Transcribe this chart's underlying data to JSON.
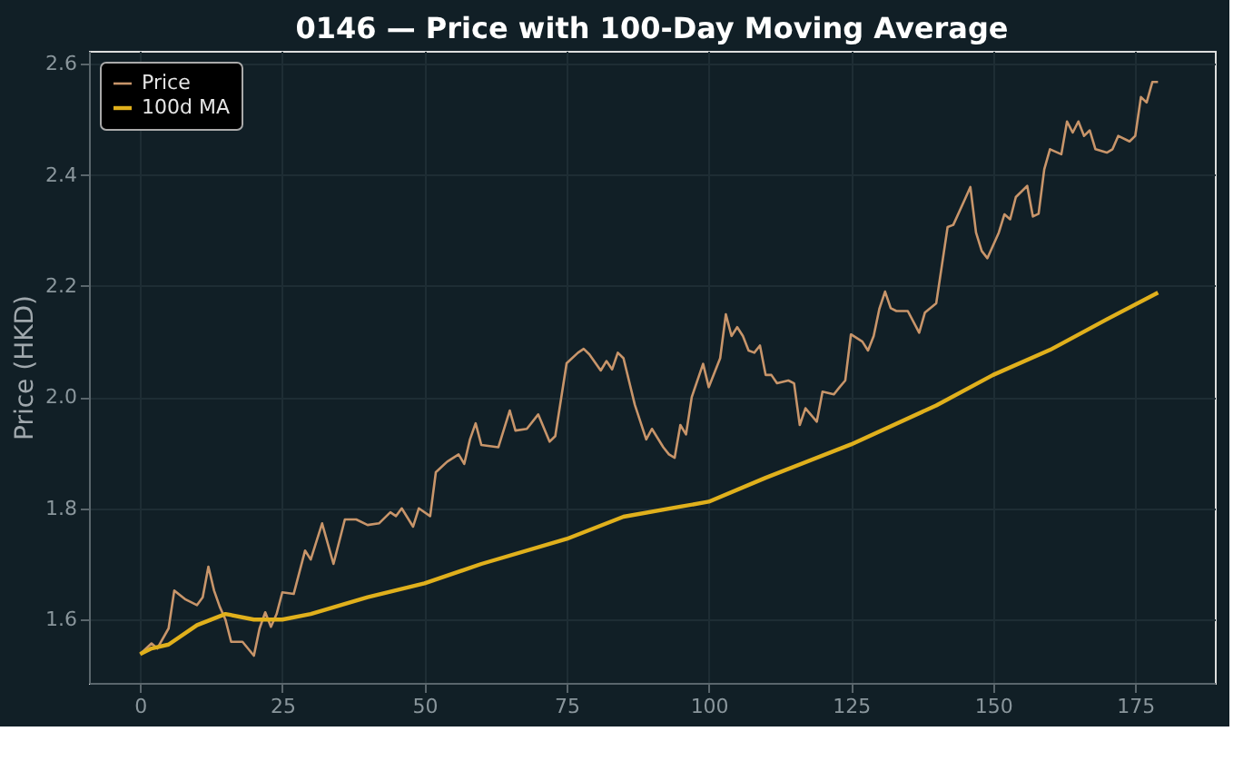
{
  "chart_data": {
    "type": "line",
    "title": "0146 — Price with 100-Day Moving Average",
    "ylabel": "Price (HKD)",
    "xlim": [
      -9,
      189
    ],
    "ylim": [
      1.486,
      2.623
    ],
    "xticks": [
      0,
      25,
      50,
      75,
      100,
      125,
      150,
      175
    ],
    "yticks": [
      1.6,
      1.8,
      {
        "value": 2,
        "label": "2.0"
      },
      2.2,
      2.4,
      2.6
    ],
    "grid": true,
    "legend": "top left",
    "line_style": "solid",
    "series": [
      {
        "name": "Price",
        "color": "#c8956a",
        "x": [
          0,
          2,
          3,
          5,
          6,
          8,
          10,
          11,
          12,
          13,
          14,
          15,
          16,
          18,
          20,
          21,
          22,
          23,
          24,
          25,
          27,
          29,
          30,
          32,
          34,
          36,
          38,
          40,
          42,
          44,
          45,
          46,
          48,
          49,
          51,
          52,
          54,
          56,
          57,
          58,
          59,
          60,
          63,
          65,
          66,
          68,
          70,
          72,
          73,
          75,
          77,
          78,
          79,
          81,
          82,
          83,
          84,
          85,
          87,
          89,
          90,
          92,
          93,
          94,
          95,
          96,
          97,
          99,
          100,
          102,
          103,
          104,
          105,
          106,
          107,
          108,
          109,
          110,
          111,
          112,
          114,
          115,
          116,
          117,
          119,
          120,
          122,
          123,
          124,
          125,
          127,
          128,
          129,
          130,
          131,
          132,
          133,
          135,
          137,
          138,
          140,
          142,
          143,
          145,
          146,
          147,
          148,
          149,
          151,
          152,
          153,
          154,
          156,
          157,
          158,
          159,
          160,
          162,
          163,
          164,
          165,
          166,
          167,
          168,
          170,
          171,
          172,
          174,
          175,
          176,
          177,
          178,
          179
        ],
        "values": [
          1.538,
          1.557,
          1.548,
          1.584,
          1.652,
          1.636,
          1.626,
          1.64,
          1.695,
          1.652,
          1.623,
          1.6,
          1.56,
          1.56,
          1.535,
          1.584,
          1.613,
          1.587,
          1.61,
          1.649,
          1.646,
          1.724,
          1.708,
          1.773,
          1.7,
          1.78,
          1.78,
          1.77,
          1.773,
          1.793,
          1.786,
          1.8,
          1.767,
          1.8,
          1.786,
          1.865,
          1.884,
          1.897,
          1.88,
          1.924,
          1.953,
          1.914,
          1.91,
          1.976,
          1.94,
          1.943,
          1.969,
          1.92,
          1.93,
          2.061,
          2.08,
          2.087,
          2.077,
          2.048,
          2.065,
          2.05,
          2.08,
          2.07,
          1.986,
          1.924,
          1.943,
          1.91,
          1.897,
          1.891,
          1.95,
          1.933,
          2.0,
          2.06,
          2.018,
          2.07,
          2.149,
          2.11,
          2.126,
          2.11,
          2.084,
          2.08,
          2.093,
          2.04,
          2.04,
          2.025,
          2.03,
          2.025,
          1.95,
          1.98,
          1.956,
          2.01,
          2.005,
          2.018,
          2.03,
          2.113,
          2.1,
          2.084,
          2.11,
          2.159,
          2.19,
          2.16,
          2.155,
          2.155,
          2.116,
          2.152,
          2.169,
          2.306,
          2.31,
          2.355,
          2.378,
          2.296,
          2.263,
          2.25,
          2.296,
          2.329,
          2.32,
          2.36,
          2.38,
          2.325,
          2.33,
          2.41,
          2.446,
          2.437,
          2.496,
          2.476,
          2.496,
          2.47,
          2.48,
          2.446,
          2.44,
          2.446,
          2.47,
          2.46,
          2.47,
          2.54,
          2.53,
          2.567,
          2.567
        ]
      },
      {
        "name": "100d MA",
        "color": "#e0b01c",
        "x": [
          0,
          2,
          5,
          10,
          15,
          20,
          25,
          30,
          40,
          50,
          60,
          75,
          85,
          95,
          100,
          110,
          125,
          140,
          150,
          160,
          170,
          179
        ],
        "values": [
          1.538,
          1.548,
          1.555,
          1.59,
          1.61,
          1.6,
          1.6,
          1.61,
          1.64,
          1.665,
          1.7,
          1.745,
          1.785,
          1.803,
          1.812,
          1.855,
          1.915,
          1.985,
          2.04,
          2.085,
          2.14,
          2.188
        ]
      }
    ]
  }
}
